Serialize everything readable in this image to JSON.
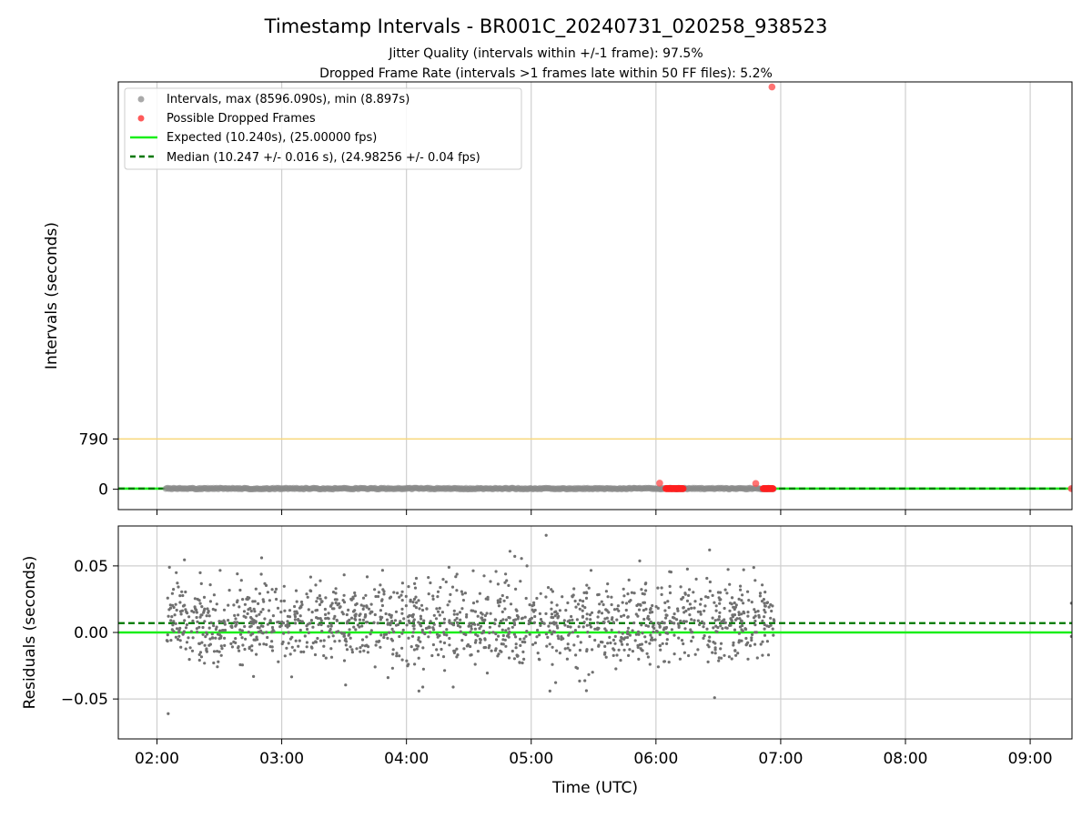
{
  "chart_data": [
    {
      "type": "scatter",
      "title": "Timestamp Intervals - BR001C_20240731_020258_938523",
      "subtitles": [
        "Jitter Quality (intervals within +/-1 frame): 97.5%",
        "Dropped Frame Rate (intervals >1 frames late within 50 FF files): 5.2%"
      ],
      "ylabel": "Intervals (seconds)",
      "xlabel": "",
      "xlim_hours": [
        1.69,
        9.335
      ],
      "ylim": [
        -320,
        6400
      ],
      "y_ticks": [
        {
          "value": 0,
          "label": "0"
        },
        {
          "value": 790,
          "label": "790"
        }
      ],
      "threshold_line": {
        "value": 790,
        "color": "#f8d77a"
      },
      "legend": {
        "placement": "upper-left",
        "entries": [
          {
            "label": "Intervals, max (8596.090s), min (8.897s)",
            "marker": "dot",
            "color": "#a9a9a9"
          },
          {
            "label": "Possible Dropped Frames",
            "marker": "dot",
            "color": "#ff5a5a"
          },
          {
            "label": "Expected (10.240s), (25.00000 fps)",
            "marker": "solid-line",
            "color": "#1aef1a"
          },
          {
            "label": "Median (10.247 +/- 0.016 s), (24.98256 +/- 0.04 fps)",
            "marker": "dashed-line",
            "color": "#007700"
          }
        ]
      },
      "series": [
        {
          "name": "Intervals, max (8596.090s), min (8.897s)",
          "color": "#808080",
          "range_hours": [
            2.07,
            6.95
          ],
          "value": 10.25,
          "points": [
            [
              9.33,
              10.25
            ]
          ]
        },
        {
          "name": "Possible Dropped Frames",
          "color": "#ff2020",
          "clusters_hours": [
            [
              6.08,
              6.22
            ],
            [
              6.86,
              6.94
            ]
          ],
          "points": [
            [
              6.03,
              95
            ],
            [
              6.8,
              90
            ],
            [
              6.93,
              6320
            ],
            [
              9.33,
              10.25
            ]
          ]
        },
        {
          "name": "Expected (10.240s), (25.00000 fps)",
          "value": 10.24,
          "color": "#1aef1a"
        },
        {
          "name": "Median (10.247 +/- 0.016 s), (24.98256 +/- 0.04 fps)",
          "value": 10.247,
          "color": "#007700"
        }
      ]
    },
    {
      "type": "scatter",
      "xlabel": "Time (UTC)",
      "ylabel": "Residuals (seconds)",
      "xlim_hours": [
        1.69,
        9.335
      ],
      "ylim": [
        -0.08,
        0.08
      ],
      "grid": true,
      "x_ticks": [
        {
          "value": 2,
          "label": "02:00"
        },
        {
          "value": 3,
          "label": "03:00"
        },
        {
          "value": 4,
          "label": "04:00"
        },
        {
          "value": 5,
          "label": "05:00"
        },
        {
          "value": 6,
          "label": "06:00"
        },
        {
          "value": 7,
          "label": "07:00"
        },
        {
          "value": 8,
          "label": "08:00"
        },
        {
          "value": 9,
          "label": "09:00"
        }
      ],
      "y_ticks": [
        {
          "value": 0.05,
          "label": "0.05"
        },
        {
          "value": 0.0,
          "label": "0.00"
        },
        {
          "value": -0.05,
          "label": "−0.05"
        }
      ],
      "series": [
        {
          "name": "Residuals",
          "color": "#707070",
          "range_hours": [
            2.07,
            6.95
          ],
          "mean": 0.007,
          "std": 0.016,
          "points": [
            [
              2.09,
              -0.061
            ],
            [
              2.1,
              0.049
            ],
            [
              5.12,
              0.073
            ],
            [
              4.83,
              0.061
            ],
            [
              6.43,
              0.062
            ],
            [
              6.47,
              -0.049
            ],
            [
              5.15,
              -0.044
            ],
            [
              4.1,
              -0.044
            ],
            [
              9.33,
              0.022
            ],
            [
              9.33,
              -0.003
            ]
          ]
        },
        {
          "name": "Expected",
          "value": 0.0,
          "color": "#1aef1a"
        },
        {
          "name": "Median",
          "value": 0.007,
          "color": "#007700"
        }
      ]
    }
  ]
}
